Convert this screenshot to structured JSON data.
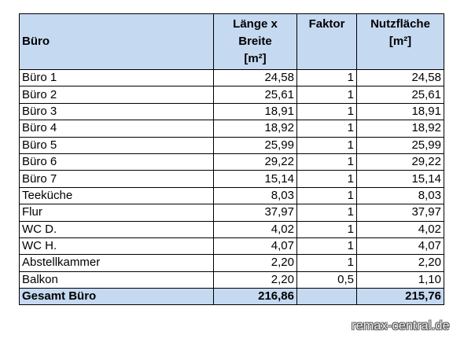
{
  "table": {
    "headers": {
      "name": "Büro",
      "length_width": [
        "Länge x",
        "Breite",
        "[m²]"
      ],
      "factor": "Faktor",
      "usable_area": [
        "Nutzfläche",
        "[m²]"
      ]
    },
    "rows": [
      {
        "name": "Büro 1",
        "length_width": "24,58",
        "factor": "1",
        "usable_area": "24,58"
      },
      {
        "name": "Büro 2",
        "length_width": "25,61",
        "factor": "1",
        "usable_area": "25,61"
      },
      {
        "name": "Büro 3",
        "length_width": "18,91",
        "factor": "1",
        "usable_area": "18,91"
      },
      {
        "name": "Büro 4",
        "length_width": "18,92",
        "factor": "1",
        "usable_area": "18,92"
      },
      {
        "name": "Büro 5",
        "length_width": "25,99",
        "factor": "1",
        "usable_area": "25,99"
      },
      {
        "name": "Büro 6",
        "length_width": "29,22",
        "factor": "1",
        "usable_area": "29,22"
      },
      {
        "name": "Büro 7",
        "length_width": "15,14",
        "factor": "1",
        "usable_area": "15,14"
      },
      {
        "name": "Teeküche",
        "length_width": "8,03",
        "factor": "1",
        "usable_area": "8,03"
      },
      {
        "name": "Flur",
        "length_width": "37,97",
        "factor": "1",
        "usable_area": "37,97"
      },
      {
        "name": "WC D.",
        "length_width": "4,02",
        "factor": "1",
        "usable_area": "4,02"
      },
      {
        "name": "WC H.",
        "length_width": "4,07",
        "factor": "1",
        "usable_area": "4,07"
      },
      {
        "name": "Abstellkammer",
        "length_width": "2,20",
        "factor": "1",
        "usable_area": "2,20"
      },
      {
        "name": "Balkon",
        "length_width": "2,20",
        "factor": "0,5",
        "usable_area": "1,10"
      }
    ],
    "total": {
      "name": "Gesamt Büro",
      "length_width": "216,86",
      "factor": "",
      "usable_area": "215,76"
    }
  },
  "watermark": "remax-central.de",
  "colors": {
    "header_bg": "#c5d9f1",
    "border": "#000000"
  }
}
